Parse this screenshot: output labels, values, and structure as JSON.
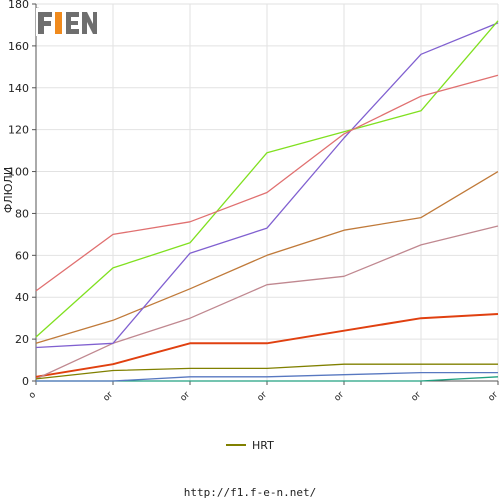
{
  "logo": {
    "text": "F1EN",
    "colors": {
      "accent": "#f08a1c",
      "gray": "#6e6e6e"
    }
  },
  "chart_data": {
    "type": "line",
    "title": "",
    "xlabel": "",
    "ylabel": "ФЛЮЛИ",
    "ylim": [
      0,
      180
    ],
    "yticks": [
      0,
      20,
      40,
      60,
      80,
      100,
      120,
      140,
      160,
      180
    ],
    "x": [
      "o",
      "or",
      "or",
      "or",
      "or",
      "or",
      "or"
    ],
    "grid": true,
    "legend_position": "bottom-center",
    "series": [
      {
        "color": "#808000",
        "name": "HRT",
        "values": [
          1,
          5,
          6,
          6,
          8,
          8,
          8
        ]
      },
      {
        "color": "#e07070",
        "values": [
          43,
          70,
          76,
          90,
          118,
          136,
          146
        ]
      },
      {
        "color": "#80e020",
        "values": [
          21,
          54,
          66,
          109,
          119,
          129,
          172
        ]
      },
      {
        "color": "#8060d0",
        "values": [
          16,
          18,
          61,
          73,
          116,
          156,
          171
        ]
      },
      {
        "color": "#c07a3a",
        "values": [
          18,
          29,
          44,
          60,
          72,
          78,
          100
        ]
      },
      {
        "color": "#c08890",
        "values": [
          1,
          18,
          30,
          46,
          50,
          65,
          74
        ]
      },
      {
        "color": "#e04010",
        "values": [
          2,
          8,
          18,
          18,
          24,
          30,
          32
        ]
      },
      {
        "color": "#5878c0",
        "values": [
          0,
          0,
          2,
          2,
          3,
          4,
          4
        ]
      },
      {
        "color": "#20a080",
        "values": [
          0,
          0,
          0,
          0,
          0,
          0,
          2
        ]
      }
    ]
  },
  "footer": {
    "url": "http://f1.f-e-n.net/"
  }
}
